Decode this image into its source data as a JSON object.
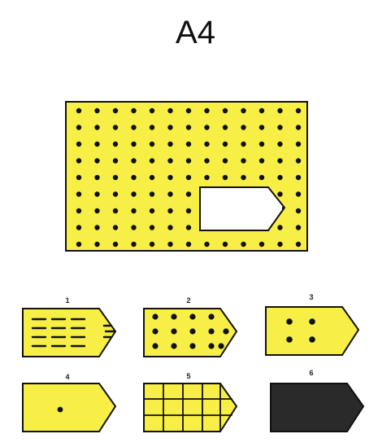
{
  "title": "A4",
  "colors": {
    "fill": "#f7ef45",
    "stroke": "#111111",
    "dot": "#111111",
    "hole": "#ffffff",
    "dark_option": "#2a2a2a"
  },
  "pattern": {
    "type": "dot-grid",
    "rows": 9,
    "columns": 13
  },
  "options": [
    {
      "number": "1",
      "pattern": "dashes"
    },
    {
      "number": "2",
      "pattern": "dot-grid-3x4"
    },
    {
      "number": "3",
      "pattern": "four-dots"
    },
    {
      "number": "4",
      "pattern": "single-dot"
    },
    {
      "number": "5",
      "pattern": "grid-lines"
    },
    {
      "number": "6",
      "pattern": "solid-black"
    }
  ]
}
